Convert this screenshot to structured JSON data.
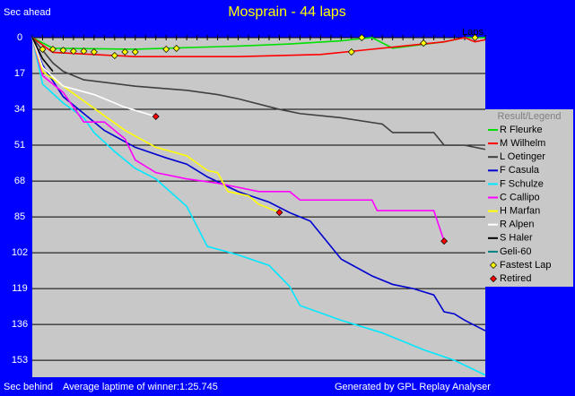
{
  "chart_data": {
    "type": "line",
    "title": "Mosprain - 44 laps",
    "y_label_top": "Sec ahead",
    "y_label_bottom": "Sec behind",
    "x_label": "Laps",
    "footer_left": "Average laptime of winner:1:25.745",
    "footer_right": "Generated by GPL Replay Analyser",
    "legend_title": "Result/Legend",
    "xlim": [
      0,
      44
    ],
    "ylim": [
      0,
      161
    ],
    "y_inverted": true,
    "yticks": [
      0,
      17,
      34,
      51,
      68,
      85,
      102,
      119,
      136,
      153
    ],
    "grid": true,
    "series": [
      {
        "name": "R Fleurke",
        "color": "#00e000",
        "x": [
          0,
          2,
          10,
          20,
          25,
          30,
          33,
          35,
          40,
          42,
          44
        ],
        "values": [
          0,
          5,
          5.5,
          4,
          3,
          1.5,
          0,
          5,
          2,
          0,
          0
        ]
      },
      {
        "name": "M Wilhelm",
        "color": "#ff0000",
        "x": [
          0,
          2,
          10,
          20,
          28,
          32,
          36,
          40,
          42,
          43,
          44
        ],
        "values": [
          0,
          7,
          9,
          9,
          8,
          6,
          4,
          2,
          0,
          2,
          1
        ]
      },
      {
        "name": "L Oetinger",
        "color": "#404040",
        "x": [
          0,
          1,
          2,
          3,
          5,
          10,
          15,
          18,
          20,
          24,
          26,
          30,
          34,
          35,
          39,
          40,
          42,
          44
        ],
        "values": [
          0,
          6,
          12,
          16,
          20,
          23,
          25,
          27,
          29,
          34,
          36,
          38,
          41,
          45,
          45,
          51,
          51,
          53
        ]
      },
      {
        "name": "F Casula",
        "color": "#0000d0",
        "x": [
          0,
          1,
          3,
          5,
          7,
          10,
          13,
          15,
          17,
          20,
          23,
          25,
          27,
          28,
          30,
          33,
          35,
          37,
          39,
          40,
          41,
          42,
          44
        ],
        "values": [
          0,
          13,
          28,
          36,
          44,
          52,
          57,
          60,
          66,
          73,
          78,
          83,
          87,
          93,
          105,
          113,
          117,
          119,
          122,
          130,
          131,
          134,
          139
        ]
      },
      {
        "name": "F Schulze",
        "color": "#00e8ff",
        "x": [
          0,
          1,
          3,
          5,
          6,
          8,
          10,
          12,
          15,
          17,
          20,
          23,
          25,
          26,
          30,
          34,
          38,
          41,
          44
        ],
        "values": [
          0,
          22,
          31,
          38,
          45,
          54,
          62,
          67,
          80,
          99,
          103,
          108,
          118,
          127,
          134,
          140,
          148,
          153,
          160
        ]
      },
      {
        "name": "C Callipo",
        "color": "#ff00ff",
        "x": [
          0,
          1,
          3,
          5,
          7,
          9,
          10,
          12,
          15,
          18,
          20,
          22,
          25,
          26,
          33,
          33.5,
          39,
          40
        ],
        "values": [
          0,
          18,
          26,
          40,
          40,
          48,
          58,
          64,
          67,
          69,
          71,
          73,
          73,
          77,
          77,
          82,
          82,
          96.5
        ]
      },
      {
        "name": "H Marfan",
        "color": "#ffff00",
        "x": [
          0,
          1,
          3,
          5,
          7,
          9,
          12,
          15,
          17,
          18,
          19,
          21,
          22,
          24
        ],
        "values": [
          0,
          16,
          23,
          30,
          37,
          44,
          52,
          56,
          63,
          64,
          73,
          75,
          79,
          82.9
        ]
      },
      {
        "name": "R Alpen",
        "color": "#ffffff",
        "x": [
          0,
          1,
          3,
          6,
          9,
          12
        ],
        "values": [
          0,
          14,
          23,
          27,
          33,
          37.4
        ]
      },
      {
        "name": "S Haler",
        "color": "#000000",
        "x": [
          0,
          1,
          2
        ],
        "values": [
          0,
          10,
          16
        ]
      },
      {
        "name": "Geli-60",
        "color": "#008080",
        "x": [],
        "values": []
      },
      {
        "name": "Fastest Lap",
        "marker": "diamond",
        "color": "#ffff00",
        "x": [
          1,
          2,
          3,
          4,
          5,
          6,
          8,
          9,
          10,
          13,
          14,
          31,
          32,
          38,
          43
        ],
        "values": [
          5.5,
          5.5,
          6,
          6.4,
          6.4,
          6.8,
          8.5,
          6.8,
          6.8,
          5.5,
          5.1,
          6.8,
          0,
          2.6,
          0
        ]
      },
      {
        "name": "Retired",
        "marker": "diamond",
        "color": "#ff0000",
        "x": [
          12,
          24,
          40
        ],
        "values": [
          37.4,
          82.9,
          96.5
        ]
      }
    ]
  }
}
